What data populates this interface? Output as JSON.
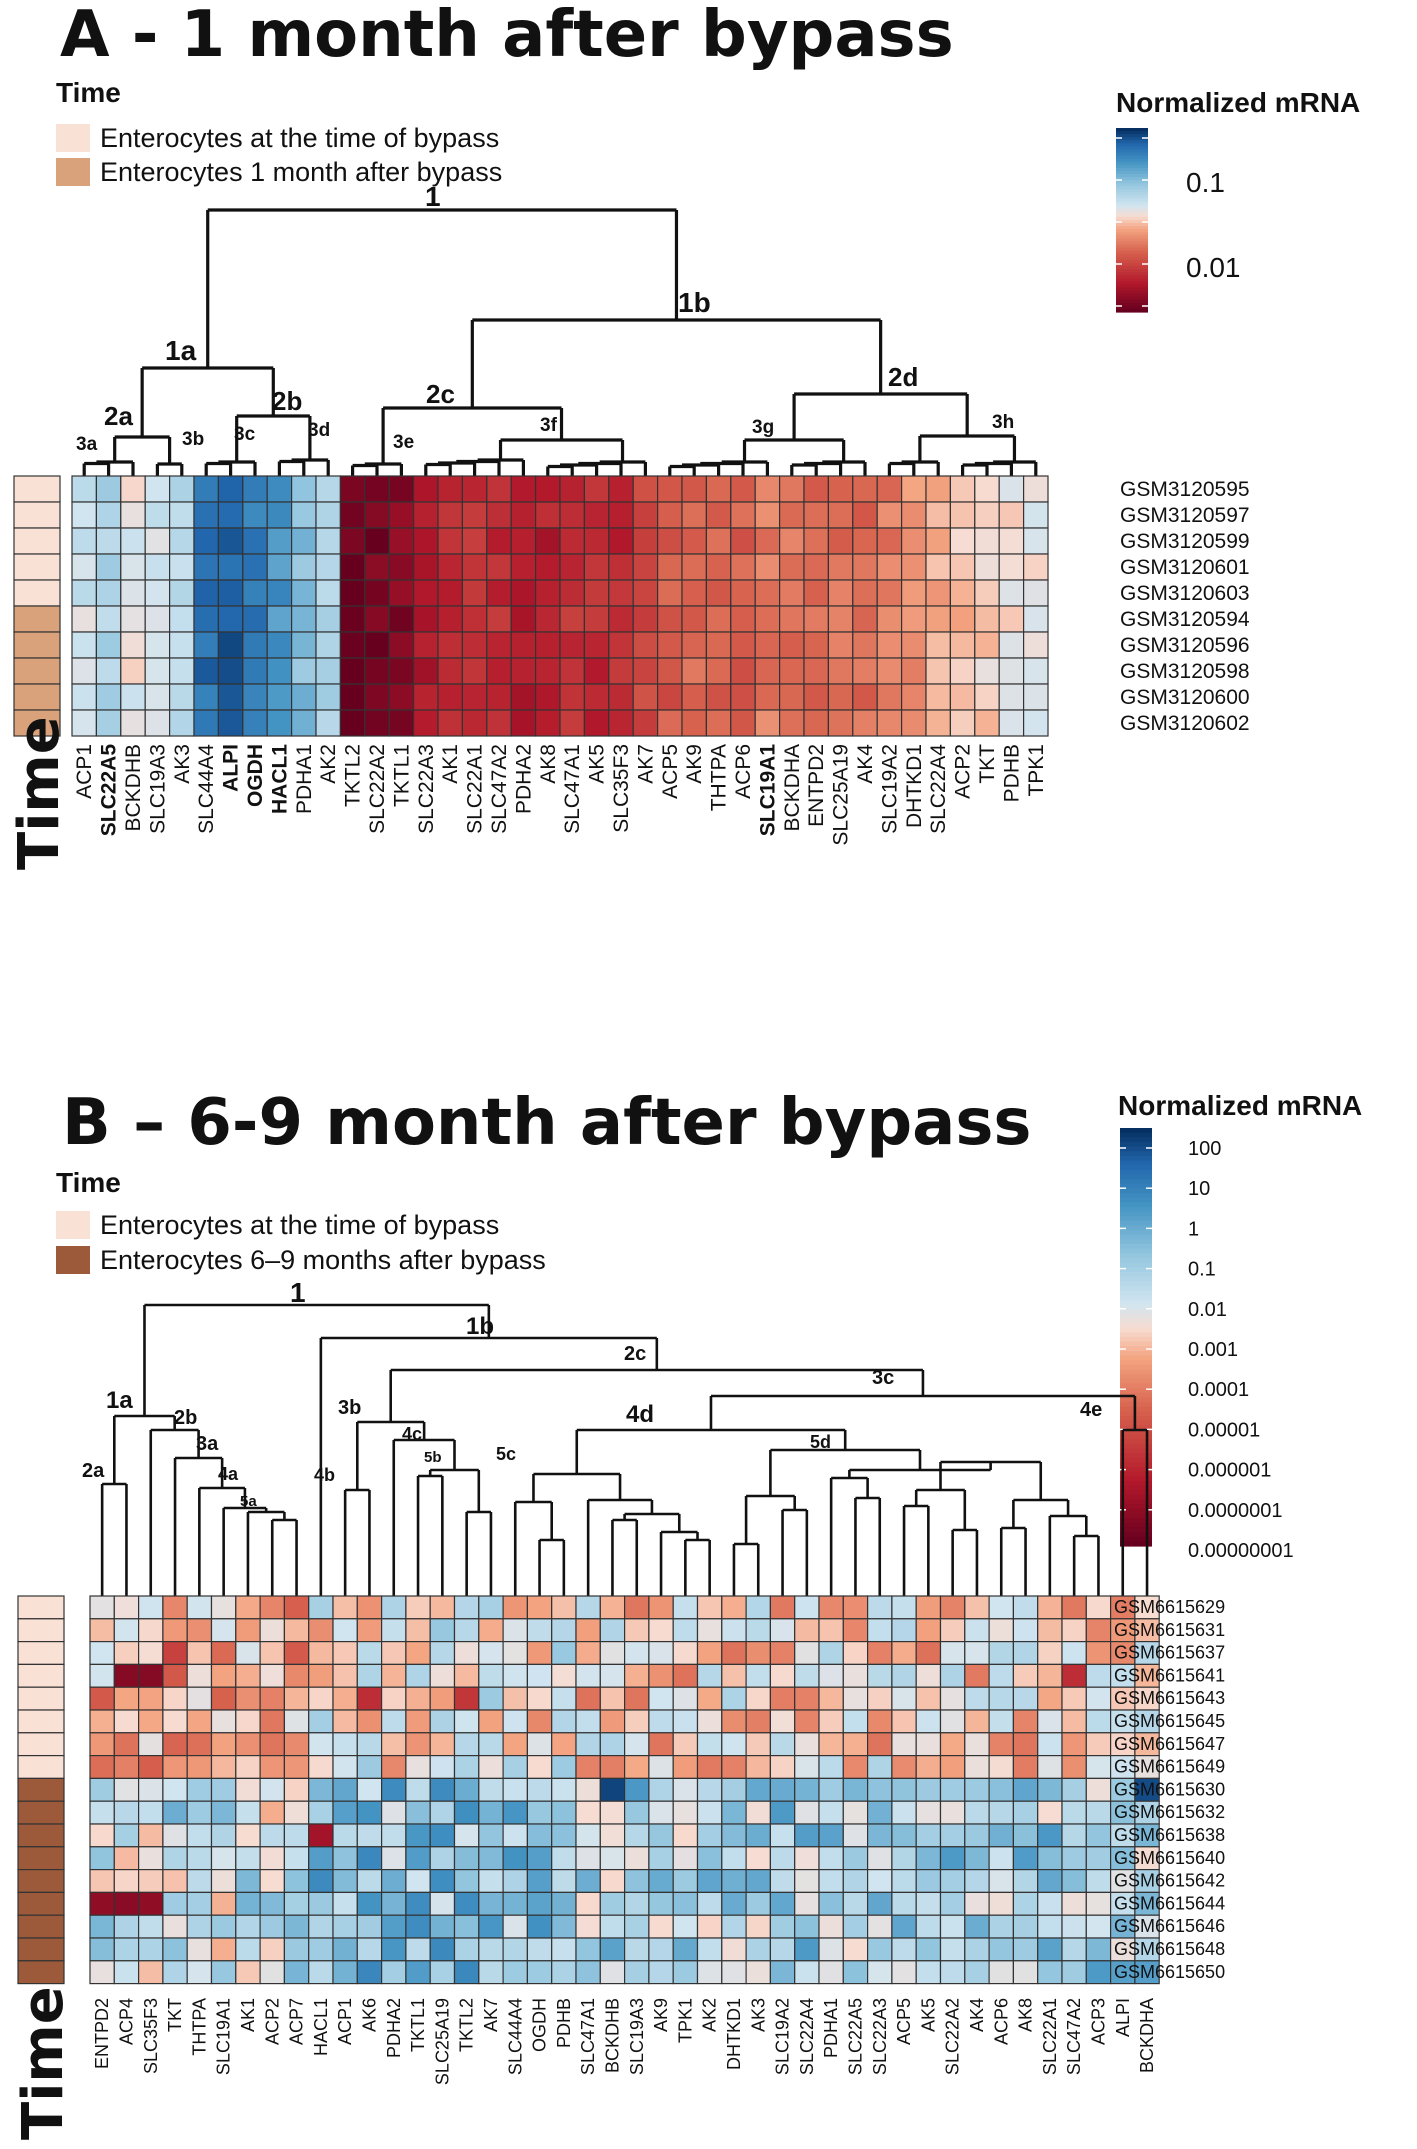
{
  "panelA": {
    "title": "A - 1 month after bypass",
    "legend_title": "Time",
    "legend": [
      {
        "label": "Enterocytes at the time of bypass",
        "color": "#f9e1d6"
      },
      {
        "label": "Enterocytes 1 month after bypass",
        "color": "#d9a27a"
      }
    ],
    "colorbar_title": "Normalized mRNA",
    "colorbar_ticks": [
      "0.1",
      "0.01"
    ],
    "time_axis_label": "Time",
    "dendrogram_labels": [
      "1",
      "1a",
      "1b",
      "2a",
      "2b",
      "2c",
      "2d",
      "3a",
      "3b",
      "3c",
      "3d",
      "3e",
      "3f",
      "3g",
      "3h"
    ],
    "samples": [
      "GSM3120595",
      "GSM3120597",
      "GSM3120599",
      "GSM3120601",
      "GSM3120603",
      "GSM3120594",
      "GSM3120596",
      "GSM3120598",
      "GSM3120600",
      "GSM3120602"
    ],
    "genes": [
      "ACP1",
      "SLC22A5",
      "BCKDHB",
      "SLC19A3",
      "AK3",
      "SLC44A4",
      "ALPI",
      "OGDH",
      "HACL1",
      "PDHA1",
      "AK2",
      "TKTL2",
      "SLC22A2",
      "TKTL1",
      "SLC22A3",
      "AK1",
      "SLC22A1",
      "SLC47A2",
      "PDHA2",
      "AK8",
      "SLC47A1",
      "AK5",
      "SLC35F3",
      "AK7",
      "ACP5",
      "AK9",
      "THTPA",
      "ACP6",
      "SLC19A1",
      "BCKDHA",
      "ENTPD2",
      "SLC25A19",
      "AK4",
      "SLC19A2",
      "DHTKD1",
      "SLC22A4",
      "ACP2",
      "TKT",
      "PDHB",
      "TPK1"
    ],
    "bold_genes": [
      "SLC22A5",
      "ALPI",
      "OGDH",
      "HACL1",
      "SLC19A1"
    ]
  },
  "panelB": {
    "title": "B – 6-9 month after bypass",
    "legend_title": "Time",
    "legend": [
      {
        "label": "Enterocytes at the time of bypass",
        "color": "#f9e1d6"
      },
      {
        "label": "Enterocytes 6–9 months after bypass",
        "color": "#9c5a3a"
      }
    ],
    "colorbar_title": "Normalized mRNA",
    "colorbar_ticks": [
      "100",
      "10",
      "1",
      "0.1",
      "0.01",
      "0.001",
      "0.0001",
      "0.00001",
      "0.000001",
      "0.0000001",
      "0.00000001"
    ],
    "time_axis_label": "Time",
    "dendrogram_labels": [
      "1",
      "1a",
      "1b",
      "2a",
      "2b",
      "2c",
      "3a",
      "3b",
      "3c",
      "4a",
      "4b",
      "4c",
      "4d",
      "4e",
      "5a",
      "5b",
      "5c",
      "5d"
    ],
    "samples": [
      "GSM6615629",
      "GSM6615631",
      "GSM6615637",
      "GSM6615641",
      "GSM6615643",
      "GSM6615645",
      "GSM6615647",
      "GSM6615649",
      "GSM6615630",
      "GSM6615632",
      "GSM6615638",
      "GSM6615640",
      "GSM6615642",
      "GSM6615644",
      "GSM6615646",
      "GSM6615648",
      "GSM6615650"
    ],
    "genes": [
      "ENTPD2",
      "ACP4",
      "SLC35F3",
      "TKT",
      "THTPA",
      "SLC19A1",
      "AK1",
      "ACP2",
      "ACP7",
      "HACL1",
      "ACP1",
      "AK6",
      "PDHA2",
      "TKTL1",
      "SLC25A19",
      "TKTL2",
      "AK7",
      "SLC44A4",
      "OGDH",
      "PDHB",
      "SLC47A1",
      "BCKDHB",
      "SLC19A3",
      "AK9",
      "TPK1",
      "AK2",
      "DHTKD1",
      "AK3",
      "SLC19A2",
      "SLC22A4",
      "PDHA1",
      "SLC22A5",
      "SLC22A3",
      "ACP5",
      "AK5",
      "SLC22A2",
      "AK4",
      "ACP6",
      "AK8",
      "SLC22A1",
      "SLC47A2",
      "ACP3",
      "ALPI",
      "BCKDHA"
    ]
  },
  "chart_data": [
    {
      "type": "heatmap",
      "title": "A - 1 month after bypass",
      "xlabel": "",
      "ylabel": "",
      "value_scale": "log10 normalized mRNA",
      "color_range": [
        0.003,
        0.5
      ],
      "x": [
        "ACP1",
        "SLC22A5",
        "BCKDHB",
        "SLC19A3",
        "AK3",
        "SLC44A4",
        "ALPI",
        "OGDH",
        "HACL1",
        "PDHA1",
        "AK2",
        "TKTL2",
        "SLC22A2",
        "TKTL1",
        "SLC22A3",
        "AK1",
        "SLC22A1",
        "SLC47A2",
        "PDHA2",
        "AK8",
        "SLC47A1",
        "AK5",
        "SLC35F3",
        "AK7",
        "ACP5",
        "AK9",
        "THTPA",
        "ACP6",
        "SLC19A1",
        "BCKDHA",
        "ENTPD2",
        "SLC25A19",
        "AK4",
        "SLC19A2",
        "DHTKD1",
        "SLC22A4",
        "ACP2",
        "TKT",
        "PDHB",
        "TPK1"
      ],
      "y": [
        "GSM3120595",
        "GSM3120597",
        "GSM3120599",
        "GSM3120601",
        "GSM3120603",
        "GSM3120594",
        "GSM3120596",
        "GSM3120598",
        "GSM3120600",
        "GSM3120602"
      ],
      "gene_means": [
        0.06,
        0.08,
        0.05,
        0.06,
        0.07,
        0.3,
        0.35,
        0.25,
        0.2,
        0.12,
        0.09,
        0.003,
        0.0035,
        0.004,
        0.006,
        0.008,
        0.009,
        0.008,
        0.007,
        0.007,
        0.009,
        0.008,
        0.008,
        0.011,
        0.014,
        0.016,
        0.016,
        0.015,
        0.02,
        0.018,
        0.017,
        0.018,
        0.017,
        0.02,
        0.024,
        0.03,
        0.035,
        0.04,
        0.045,
        0.05
      ]
    },
    {
      "type": "heatmap",
      "title": "B – 6-9 month after bypass",
      "xlabel": "",
      "ylabel": "",
      "value_scale": "log10 normalized mRNA",
      "color_range": [
        1e-08,
        100
      ],
      "x": [
        "ENTPD2",
        "ACP4",
        "SLC35F3",
        "TKT",
        "THTPA",
        "SLC19A1",
        "AK1",
        "ACP2",
        "ACP7",
        "HACL1",
        "ACP1",
        "AK6",
        "PDHA2",
        "TKTL1",
        "SLC25A19",
        "TKTL2",
        "AK7",
        "SLC44A4",
        "OGDH",
        "PDHB",
        "SLC47A1",
        "BCKDHB",
        "SLC19A3",
        "AK9",
        "TPK1",
        "AK2",
        "DHTKD1",
        "AK3",
        "SLC19A2",
        "SLC22A4",
        "PDHA1",
        "SLC22A5",
        "SLC22A3",
        "ACP5",
        "AK5",
        "SLC22A2",
        "AK4",
        "ACP6",
        "AK8",
        "SLC22A1",
        "SLC47A2",
        "ACP3",
        "ALPI",
        "BCKDHA"
      ],
      "y": [
        "GSM6615629",
        "GSM6615631",
        "GSM6615637",
        "GSM6615641",
        "GSM6615643",
        "GSM6615645",
        "GSM6615647",
        "GSM6615649",
        "GSM6615630",
        "GSM6615632",
        "GSM6615638",
        "GSM6615640",
        "GSM6615642",
        "GSM6615644",
        "GSM6615646",
        "GSM6615648",
        "GSM6615650"
      ]
    }
  ]
}
